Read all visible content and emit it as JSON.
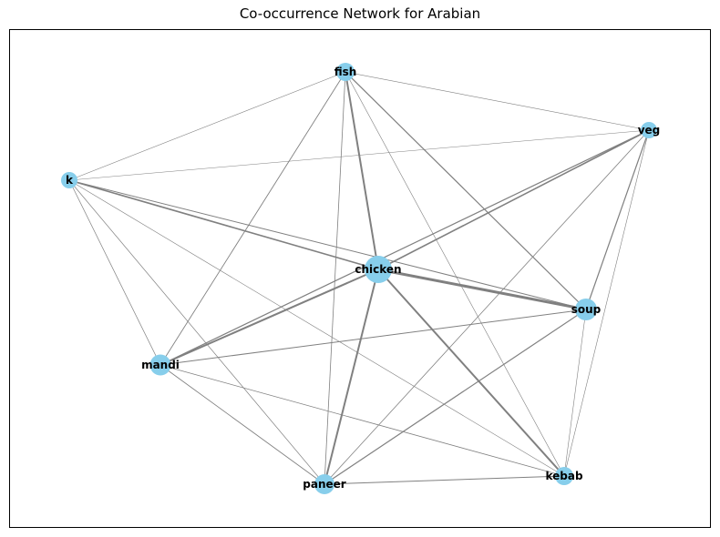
{
  "title": "Co-occurrence Network for Arabian",
  "colors": {
    "node": "#87ceeb",
    "edge": "#808080",
    "frame": "#000000"
  },
  "nodes": [
    {
      "id": "fish",
      "label": "fish",
      "weight": 1.0
    },
    {
      "id": "veg",
      "label": "veg",
      "weight": 0.8
    },
    {
      "id": "k",
      "label": "k",
      "weight": 0.8
    },
    {
      "id": "chicken",
      "label": "chicken",
      "weight": 2.0
    },
    {
      "id": "soup",
      "label": "soup",
      "weight": 1.4
    },
    {
      "id": "mandi",
      "label": "mandi",
      "weight": 1.3
    },
    {
      "id": "paneer",
      "label": "paneer",
      "weight": 1.2
    },
    {
      "id": "kebab",
      "label": "kebab",
      "weight": 1.0
    }
  ],
  "edges": [
    {
      "source": "chicken",
      "target": "soup",
      "weight": 3.0
    },
    {
      "source": "chicken",
      "target": "fish",
      "weight": 2.0
    },
    {
      "source": "chicken",
      "target": "mandi",
      "weight": 2.0
    },
    {
      "source": "chicken",
      "target": "paneer",
      "weight": 2.0
    },
    {
      "source": "chicken",
      "target": "kebab",
      "weight": 2.0
    },
    {
      "source": "chicken",
      "target": "veg",
      "weight": 1.6
    },
    {
      "source": "chicken",
      "target": "k",
      "weight": 1.6
    },
    {
      "source": "fish",
      "target": "soup",
      "weight": 1.2
    },
    {
      "source": "fish",
      "target": "mandi",
      "weight": 0.9
    },
    {
      "source": "fish",
      "target": "paneer",
      "weight": 0.8
    },
    {
      "source": "fish",
      "target": "kebab",
      "weight": 0.6
    },
    {
      "source": "fish",
      "target": "veg",
      "weight": 0.6
    },
    {
      "source": "fish",
      "target": "k",
      "weight": 0.6
    },
    {
      "source": "veg",
      "target": "soup",
      "weight": 1.2
    },
    {
      "source": "veg",
      "target": "mandi",
      "weight": 1.2
    },
    {
      "source": "veg",
      "target": "paneer",
      "weight": 0.8
    },
    {
      "source": "veg",
      "target": "kebab",
      "weight": 0.6
    },
    {
      "source": "veg",
      "target": "k",
      "weight": 0.5
    },
    {
      "source": "k",
      "target": "soup",
      "weight": 1.0
    },
    {
      "source": "k",
      "target": "mandi",
      "weight": 0.7
    },
    {
      "source": "k",
      "target": "paneer",
      "weight": 0.7
    },
    {
      "source": "k",
      "target": "kebab",
      "weight": 0.6
    },
    {
      "source": "soup",
      "target": "mandi",
      "weight": 1.0
    },
    {
      "source": "soup",
      "target": "paneer",
      "weight": 1.2
    },
    {
      "source": "soup",
      "target": "kebab",
      "weight": 0.6
    },
    {
      "source": "mandi",
      "target": "paneer",
      "weight": 0.9
    },
    {
      "source": "mandi",
      "target": "kebab",
      "weight": 0.8
    },
    {
      "source": "paneer",
      "target": "kebab",
      "weight": 1.0
    }
  ]
}
